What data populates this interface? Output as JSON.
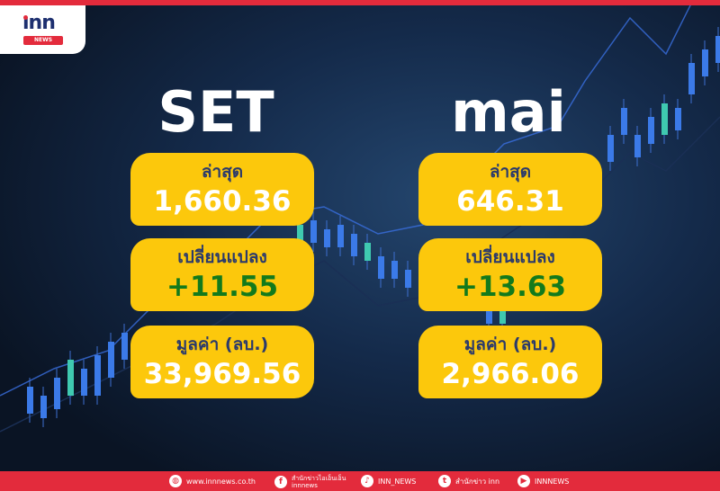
{
  "logo": {
    "text": "inn",
    "sub": "NEWS"
  },
  "set": {
    "title": "SET",
    "last_label": "ล่าสุด",
    "last_value": "1,660.36",
    "change_label": "เปลี่ยนแปลง",
    "change_value": "+11.55",
    "value_label": "มูลค่า (ลบ.)",
    "value_value": "33,969.56"
  },
  "mai": {
    "title": "mai",
    "last_label": "ล่าสุด",
    "last_value": "646.31",
    "change_label": "เปลี่ยนแปลง",
    "change_value": "+13.63",
    "value_label": "มูลค่า (ลบ.)",
    "value_value": "2,966.06"
  },
  "colors": {
    "card": "#fcc80c",
    "accent": "#e32b3c",
    "change": "#137a1c",
    "label": "#2b3a6b"
  },
  "footer": {
    "website": {
      "icon": "globe-icon",
      "text": "www.innnews.co.th"
    },
    "facebook": {
      "icon": "facebook-icon",
      "text": "สำนักข่าวไอเอ็นเอ็น",
      "sub": "innnews"
    },
    "tiktok": {
      "icon": "tiktok-icon",
      "text": "INN_NEWS"
    },
    "twitter": {
      "icon": "twitter-icon",
      "text": "สำนักข่าว inn"
    },
    "youtube": {
      "icon": "youtube-icon",
      "text": "INNNEWS"
    }
  }
}
